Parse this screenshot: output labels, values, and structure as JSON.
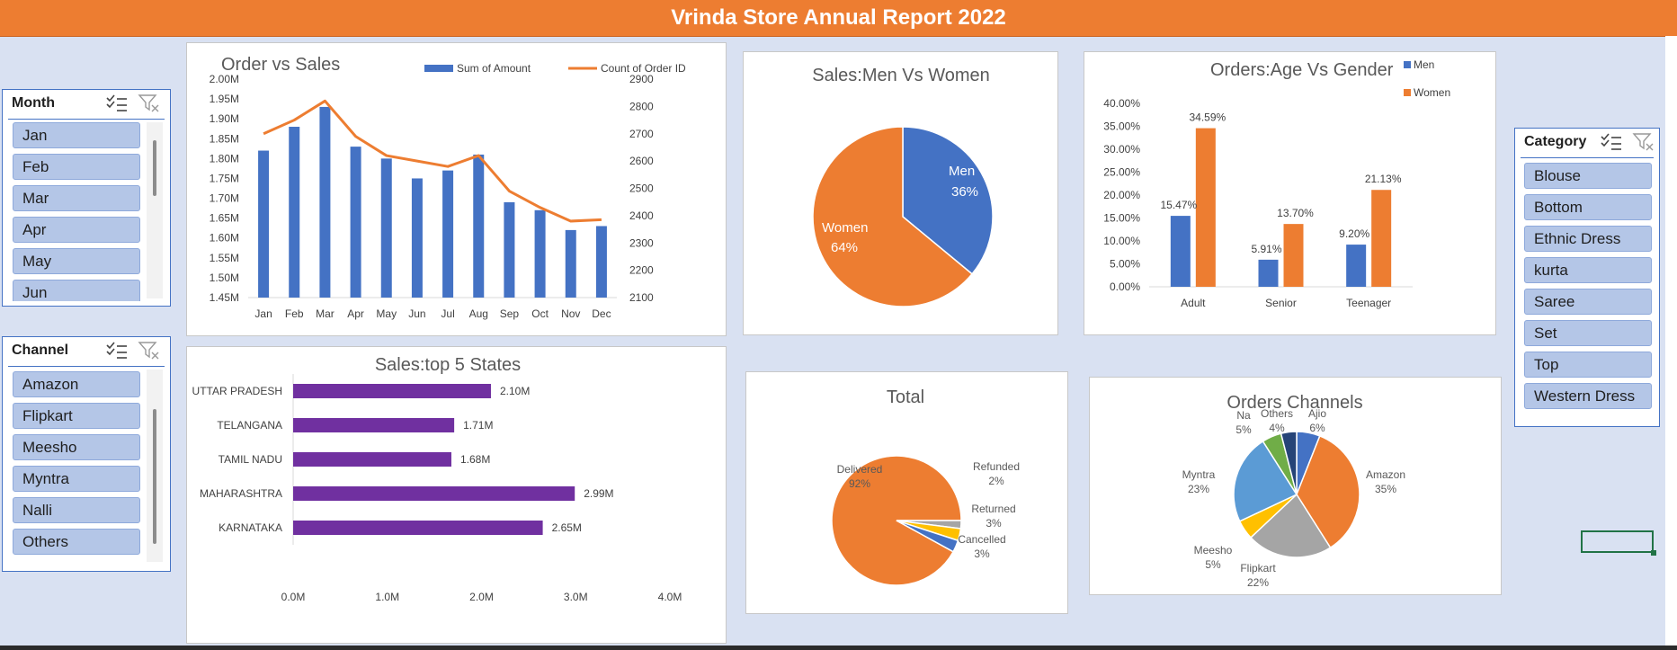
{
  "report_title": "Vrinda Store Annual Report 2022",
  "colors": {
    "blue": "#4472c4",
    "orange": "#ed7d31",
    "gray": "#a5a5a5",
    "yellow": "#ffc000",
    "lightblue": "#5b9bd5",
    "green": "#70ad47",
    "navy": "#264478",
    "purple": "#7030a0"
  },
  "slicers": {
    "month": {
      "title": "Month",
      "items": [
        "Jan",
        "Feb",
        "Mar",
        "Apr",
        "May",
        "Jun"
      ]
    },
    "channel": {
      "title": "Channel",
      "items": [
        "Amazon",
        "Flipkart",
        "Meesho",
        "Myntra",
        "Nalli",
        "Others"
      ]
    },
    "category": {
      "title": "Category",
      "items": [
        "Blouse",
        "Bottom",
        "Ethnic Dress",
        "kurta",
        "Saree",
        "Set",
        "Top",
        "Western Dress"
      ]
    }
  },
  "chart_data": [
    {
      "id": "order_vs_sales",
      "type": "bar",
      "title": "Order vs Sales",
      "categories": [
        "Jan",
        "Feb",
        "Mar",
        "Apr",
        "May",
        "Jun",
        "Jul",
        "Aug",
        "Sep",
        "Oct",
        "Nov",
        "Dec"
      ],
      "series": [
        {
          "name": "Sum of Amount",
          "type": "bar",
          "axis": "left",
          "values": [
            1.82,
            1.88,
            1.93,
            1.83,
            1.8,
            1.75,
            1.77,
            1.81,
            1.69,
            1.67,
            1.62,
            1.63
          ]
        },
        {
          "name": "Count of Order ID",
          "type": "line",
          "axis": "right",
          "values": [
            2700,
            2750,
            2820,
            2690,
            2620,
            2600,
            2580,
            2620,
            2490,
            2430,
            2380,
            2385
          ]
        }
      ],
      "y_left": {
        "min": 1.45,
        "max": 2.0,
        "ticks": [
          "1.45M",
          "1.50M",
          "1.55M",
          "1.60M",
          "1.65M",
          "1.70M",
          "1.75M",
          "1.80M",
          "1.85M",
          "1.90M",
          "1.95M",
          "2.00M"
        ]
      },
      "y_right": {
        "min": 2100,
        "max": 2900,
        "ticks": [
          "2100",
          "2200",
          "2300",
          "2400",
          "2500",
          "2600",
          "2700",
          "2800",
          "2900"
        ]
      },
      "legend": "top-right"
    },
    {
      "id": "sales_men_women",
      "type": "pie",
      "title": "Sales:Men Vs Women",
      "slices": [
        {
          "label": "Men",
          "value": 36,
          "pct_label": "36%"
        },
        {
          "label": "Women",
          "value": 64,
          "pct_label": "64%"
        }
      ]
    },
    {
      "id": "orders_age_gender",
      "type": "bar",
      "title": "Orders:Age Vs Gender",
      "categories": [
        "Adult",
        "Senior",
        "Teenager"
      ],
      "series": [
        {
          "name": "Men",
          "values": [
            15.47,
            5.91,
            9.2
          ],
          "labels": [
            "15.47%",
            "5.91%",
            "9.20%"
          ]
        },
        {
          "name": "Women",
          "values": [
            34.59,
            13.7,
            21.13
          ],
          "labels": [
            "34.59%",
            "13.70%",
            "21.13%"
          ]
        }
      ],
      "y_ticks": [
        "0.00%",
        "5.00%",
        "10.00%",
        "15.00%",
        "20.00%",
        "25.00%",
        "30.00%",
        "35.00%",
        "40.00%"
      ],
      "ylim": [
        0,
        40
      ],
      "legend": "top-right"
    },
    {
      "id": "top5_states",
      "type": "bar",
      "orientation": "horizontal",
      "title": "Sales:top 5 States",
      "categories": [
        "UTTAR PRADESH",
        "TELANGANA",
        "TAMIL NADU",
        "MAHARASHTRA",
        "KARNATAKA"
      ],
      "values": [
        2.1,
        1.71,
        1.68,
        2.99,
        2.65
      ],
      "labels": [
        "2.10M",
        "1.71M",
        "1.68M",
        "2.99M",
        "2.65M"
      ],
      "x_ticks": [
        "0.0M",
        "1.0M",
        "2.0M",
        "3.0M",
        "4.0M"
      ],
      "xlim": [
        0,
        4
      ]
    },
    {
      "id": "order_status_total",
      "type": "pie",
      "title": "Total",
      "slices": [
        {
          "label": "Delivered",
          "value": 92,
          "pct_label": "92%"
        },
        {
          "label": "Refunded",
          "value": 2,
          "pct_label": "2%"
        },
        {
          "label": "Returned",
          "value": 3,
          "pct_label": "3%"
        },
        {
          "label": "Cancelled",
          "value": 3,
          "pct_label": "3%"
        }
      ]
    },
    {
      "id": "orders_channels",
      "type": "pie",
      "title": "Orders Channels",
      "slices": [
        {
          "label": "Ajio",
          "value": 6,
          "pct_label": "6%"
        },
        {
          "label": "Amazon",
          "value": 35,
          "pct_label": "35%"
        },
        {
          "label": "Flipkart",
          "value": 22,
          "pct_label": "22%"
        },
        {
          "label": "Meesho",
          "value": 5,
          "pct_label": "5%"
        },
        {
          "label": "Myntra",
          "value": 23,
          "pct_label": "23%"
        },
        {
          "label": "Na",
          "value": 5,
          "pct_label": "5%"
        },
        {
          "label": "Others",
          "value": 4,
          "pct_label": "4%"
        }
      ]
    }
  ]
}
